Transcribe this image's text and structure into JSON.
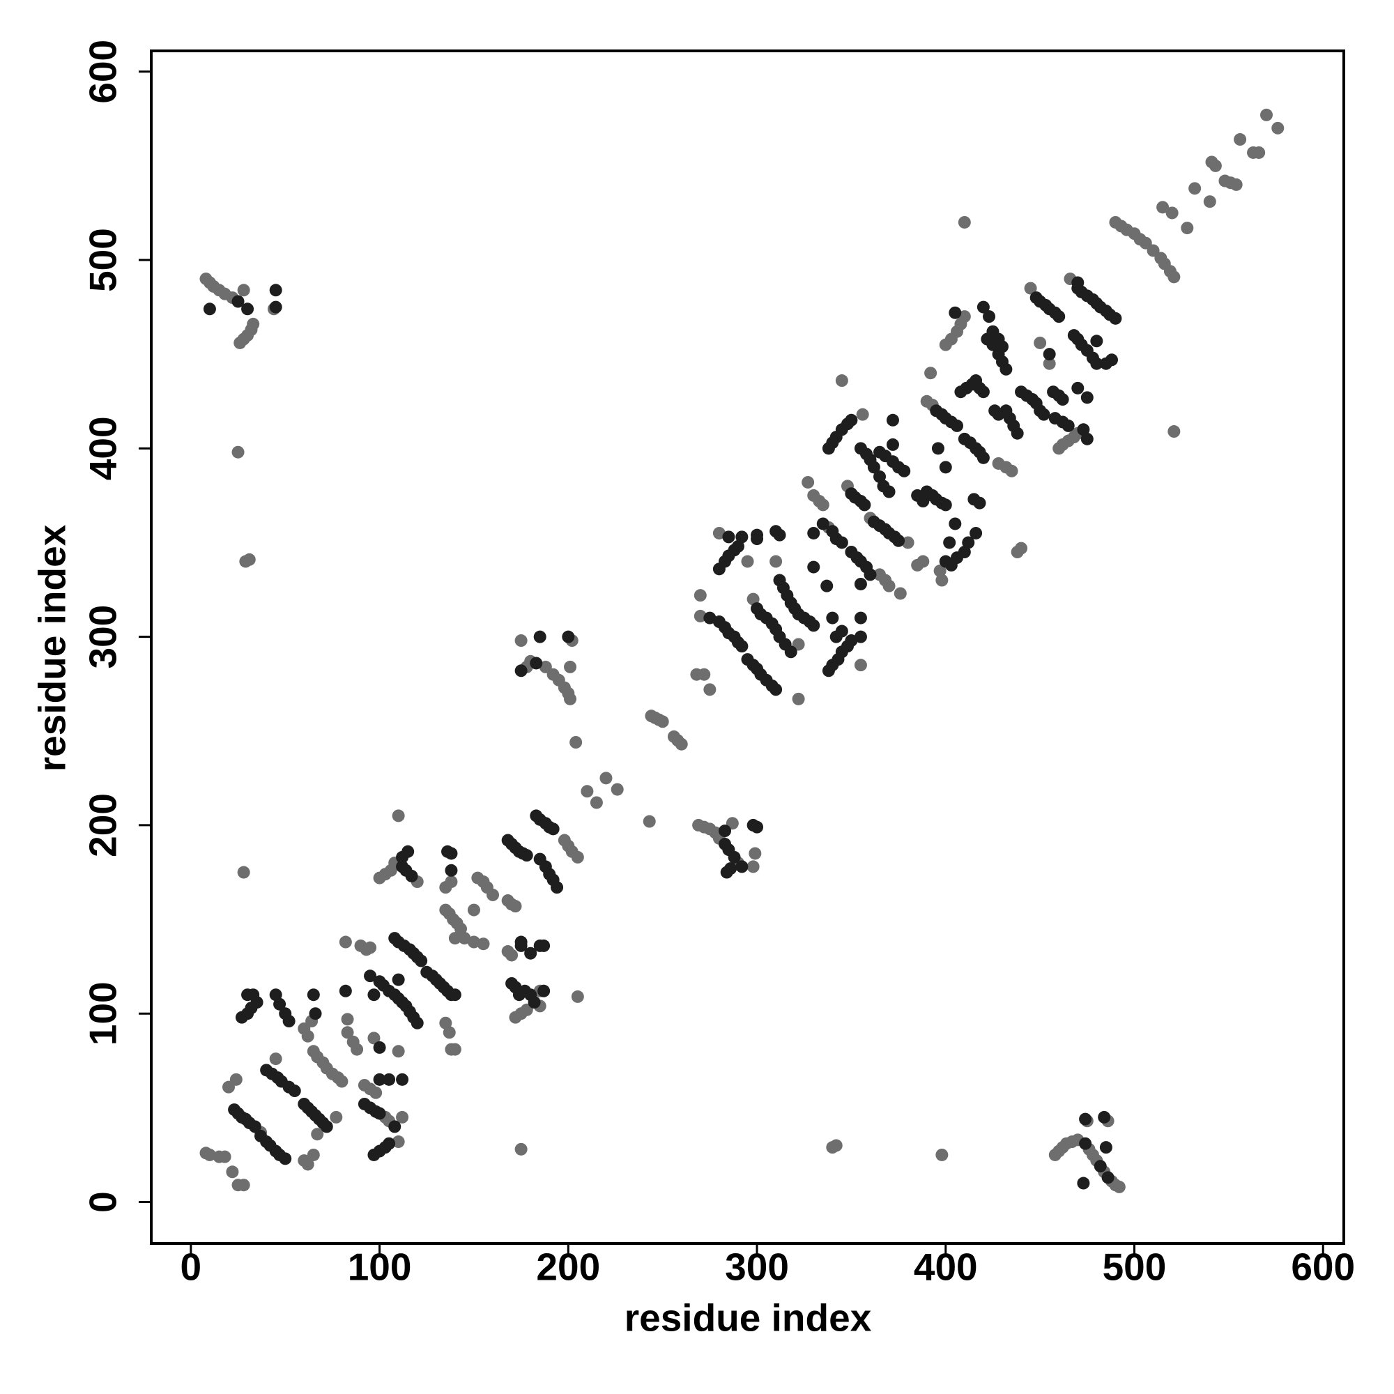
{
  "chart_data": {
    "type": "scatter",
    "x_label": "residue index",
    "y_label": "residue index",
    "xlim": [
      -21,
      611
    ],
    "ylim": [
      -22,
      611
    ],
    "xticks": [
      0,
      100,
      200,
      300,
      400,
      500,
      600
    ],
    "yticks": [
      0,
      100,
      200,
      300,
      400,
      500,
      600
    ],
    "series": [
      {
        "color": "#6e6e6e",
        "x": [
          8,
          10,
          12,
          15,
          18,
          22,
          28,
          44,
          26,
          28,
          30,
          32,
          33,
          25,
          29,
          31,
          28,
          458,
          460,
          462,
          464,
          467,
          470,
          475,
          486,
          476,
          478,
          480,
          484,
          488,
          490,
          492,
          340,
          342,
          398,
          175,
          178,
          180,
          188,
          192,
          195,
          198,
          200,
          201,
          175,
          202,
          201,
          204,
          269,
          272,
          275,
          278,
          280,
          290,
          287,
          299,
          298,
          244,
          246,
          248,
          250,
          256,
          258,
          260,
          243,
          220,
          226,
          215,
          210,
          490,
          493,
          496,
          500,
          503,
          506,
          510,
          514,
          516,
          519,
          521,
          515,
          520,
          528,
          532,
          540,
          541,
          543,
          548,
          551,
          554,
          556,
          563,
          566,
          570,
          576,
          410,
          521,
          8,
          10,
          15,
          18,
          22,
          25,
          28,
          20,
          24,
          45,
          37,
          60,
          62,
          65,
          67,
          77,
          64,
          60,
          62,
          65,
          67,
          70,
          72,
          75,
          78,
          80,
          82,
          83,
          83,
          86,
          88,
          90,
          93,
          95,
          97,
          92,
          95,
          98,
          103,
          105,
          110,
          112,
          110,
          110,
          100,
          103,
          106,
          108,
          120,
          135,
          138,
          135,
          137,
          139,
          141,
          143,
          140,
          145,
          150,
          155,
          135,
          137,
          138,
          140,
          152,
          155,
          157,
          160,
          150,
          168,
          170,
          172,
          168,
          170,
          172,
          175,
          178,
          185,
          185,
          198,
          200,
          202,
          205,
          205,
          270,
          270,
          268,
          272,
          275,
          280,
          295,
          298,
          310,
          322,
          322,
          327,
          330,
          333,
          335,
          338,
          345,
          348,
          355,
          356,
          360,
          365,
          368,
          370,
          376,
          380,
          385,
          388,
          392,
          390,
          393,
          398,
          397,
          400,
          403,
          406,
          408,
          410,
          440,
          438,
          428,
          432,
          435,
          445,
          450,
          455,
          460,
          462,
          465,
          468,
          470,
          466
        ],
        "values": [
          490,
          488,
          486,
          484,
          482,
          480,
          484,
          474,
          456,
          458,
          460,
          463,
          466,
          398,
          340,
          341,
          175,
          25,
          27,
          29,
          31,
          32,
          33,
          43,
          43,
          28,
          25,
          22,
          16,
          11,
          9,
          8,
          29,
          30,
          25,
          28,
          284,
          287,
          284,
          280,
          277,
          273,
          270,
          267,
          298,
          298,
          284,
          244,
          200,
          199,
          198,
          196,
          193,
          180,
          201,
          185,
          178,
          258,
          257,
          256,
          255,
          247,
          245,
          243,
          202,
          225,
          219,
          212,
          218,
          520,
          518,
          516,
          514,
          511,
          509,
          505,
          501,
          498,
          494,
          491,
          528,
          525,
          517,
          538,
          531,
          552,
          550,
          542,
          541,
          540,
          564,
          557,
          557,
          577,
          570,
          520,
          409,
          26,
          25,
          24,
          24,
          16,
          9,
          9,
          61,
          65,
          76,
          37,
          22,
          20,
          25,
          36,
          45,
          96,
          92,
          88,
          80,
          77,
          74,
          71,
          68,
          66,
          64,
          138,
          97,
          90,
          85,
          81,
          136,
          134,
          135,
          87,
          62,
          60,
          58,
          45,
          43,
          32,
          45,
          80,
          205,
          172,
          174,
          176,
          180,
          170,
          167,
          170,
          155,
          153,
          150,
          148,
          145,
          140,
          140,
          138,
          137,
          95,
          90,
          81,
          81,
          172,
          170,
          167,
          163,
          155,
          160,
          158,
          157,
          133,
          131,
          98,
          100,
          102,
          104,
          112,
          192,
          189,
          186,
          183,
          109,
          322,
          311,
          280,
          280,
          272,
          355,
          340,
          320,
          340,
          296,
          267,
          382,
          375,
          372,
          370,
          358,
          436,
          380,
          285,
          418,
          363,
          333,
          330,
          327,
          323,
          350,
          338,
          340,
          440,
          425,
          423,
          330,
          335,
          455,
          458,
          462,
          466,
          470,
          347,
          345,
          392,
          390,
          388,
          485,
          456,
          445,
          400,
          402,
          404,
          406,
          408,
          490
        ]
      },
      {
        "color": "#1e1e1e",
        "x": [
          10,
          45,
          45,
          25,
          30,
          474,
          484,
          474,
          482,
          486,
          485,
          473,
          175,
          183,
          185,
          200,
          283,
          285,
          288,
          292,
          284,
          286,
          283,
          298,
          300,
          23,
          25,
          27,
          29,
          31,
          34,
          37,
          40,
          42,
          45,
          47,
          50,
          27,
          30,
          32,
          35,
          30,
          33,
          40,
          43,
          46,
          48,
          52,
          55,
          45,
          47,
          50,
          52,
          60,
          62,
          64,
          66,
          68,
          70,
          72,
          65,
          66,
          82,
          95,
          97,
          100,
          102,
          105,
          108,
          110,
          100,
          100,
          105,
          92,
          95,
          98,
          100,
          108,
          97,
          100,
          103,
          105,
          112,
          108,
          110,
          113,
          116,
          118,
          120,
          122,
          110,
          112,
          114,
          116,
          118,
          120,
          112,
          115,
          112,
          114,
          117,
          125,
          128,
          130,
          132,
          134,
          136,
          138,
          140,
          136,
          138,
          138,
          168,
          170,
          172,
          174,
          176,
          178,
          175,
          175,
          180,
          185,
          187,
          170,
          172,
          174,
          177,
          180,
          182,
          187,
          183,
          185,
          188,
          190,
          192,
          185,
          188,
          190,
          192,
          194,
          275,
          280,
          283,
          285,
          288,
          290,
          292,
          280,
          283,
          285,
          288,
          290,
          285,
          292,
          300,
          300,
          300,
          302,
          305,
          308,
          310,
          312,
          315,
          318,
          295,
          298,
          300,
          302,
          305,
          308,
          310,
          312,
          314,
          316,
          318,
          320,
          310,
          312,
          322,
          325,
          328,
          330,
          330,
          335,
          340,
          342,
          345,
          330,
          337,
          340,
          342,
          345,
          338,
          340,
          343,
          345,
          348,
          350,
          355,
          355,
          355,
          338,
          340,
          342,
          345,
          348,
          350,
          350,
          352,
          355,
          357,
          350,
          353,
          355,
          358,
          360,
          355,
          358,
          360,
          362,
          365,
          367,
          370,
          362,
          365,
          368,
          370,
          373,
          375,
          365,
          368,
          372,
          375,
          378,
          372,
          372,
          390,
          393,
          395,
          398,
          400,
          385,
          388,
          395,
          398,
          400,
          403,
          406,
          396,
          400,
          405,
          402,
          400,
          403,
          406,
          410,
          412,
          405,
          408,
          411,
          414,
          416,
          418,
          420,
          410,
          413,
          416,
          418,
          420,
          415,
          418,
          416,
          420,
          423,
          425,
          428,
          430,
          422,
          425,
          428,
          430,
          432,
          432,
          434,
          436,
          438,
          426,
          428,
          440,
          443,
          446,
          448,
          450,
          452,
          448,
          450,
          453,
          455,
          458,
          460,
          455,
          457,
          460,
          462,
          458,
          462,
          465,
          473,
          475,
          468,
          470,
          472,
          475,
          478,
          480,
          470,
          472,
          475,
          478,
          480,
          482,
          485,
          487,
          490,
          470,
          475,
          470,
          485,
          488,
          480
        ],
        "values": [
          474,
          484,
          475,
          478,
          474,
          44,
          45,
          31,
          19,
          13,
          29,
          10,
          282,
          286,
          300,
          300,
          190,
          187,
          183,
          178,
          175,
          177,
          197,
          200,
          199,
          49,
          47,
          45,
          44,
          42,
          40,
          35,
          32,
          30,
          27,
          25,
          23,
          98,
          100,
          103,
          106,
          110,
          110,
          70,
          68,
          66,
          64,
          61,
          59,
          110,
          105,
          100,
          96,
          52,
          50,
          48,
          46,
          44,
          42,
          40,
          110,
          100,
          112,
          120,
          110,
          117,
          115,
          112,
          110,
          108,
          82,
          65,
          65,
          52,
          50,
          48,
          47,
          40,
          25,
          27,
          29,
          31,
          65,
          140,
          138,
          136,
          134,
          132,
          130,
          128,
          118,
          106,
          104,
          101,
          98,
          95,
          183,
          186,
          178,
          176,
          173,
          122,
          120,
          118,
          116,
          114,
          112,
          110,
          110,
          186,
          185,
          176,
          192,
          190,
          188,
          186,
          185,
          184,
          136,
          138,
          132,
          136,
          136,
          116,
          114,
          110,
          112,
          110,
          106,
          112,
          205,
          203,
          201,
          199,
          198,
          182,
          178,
          174,
          171,
          167,
          310,
          308,
          305,
          302,
          300,
          297,
          295,
          336,
          340,
          343,
          346,
          348,
          353,
          353,
          352,
          354,
          315,
          312,
          310,
          307,
          304,
          300,
          296,
          292,
          288,
          285,
          283,
          280,
          277,
          274,
          272,
          330,
          326,
          322,
          318,
          315,
          356,
          354,
          312,
          310,
          308,
          306,
          355,
          360,
          356,
          352,
          350,
          337,
          327,
          310,
          300,
          303,
          282,
          285,
          288,
          292,
          295,
          298,
          300,
          310,
          328,
          400,
          403,
          406,
          410,
          413,
          415,
          376,
          374,
          372,
          370,
          345,
          342,
          340,
          337,
          333,
          400,
          397,
          394,
          390,
          385,
          380,
          377,
          361,
          359,
          357,
          355,
          353,
          351,
          398,
          396,
          393,
          390,
          388,
          402,
          415,
          377,
          375,
          373,
          371,
          370,
          375,
          372,
          420,
          418,
          416,
          414,
          412,
          400,
          390,
          360,
          350,
          340,
          338,
          342,
          345,
          350,
          472,
          430,
          432,
          434,
          436,
          432,
          430,
          405,
          403,
          400,
          398,
          395,
          373,
          371,
          355,
          475,
          470,
          462,
          458,
          454,
          458,
          455,
          450,
          446,
          442,
          420,
          416,
          412,
          408,
          420,
          418,
          430,
          428,
          426,
          424,
          420,
          418,
          480,
          478,
          476,
          474,
          472,
          470,
          450,
          430,
          428,
          426,
          416,
          414,
          412,
          410,
          405,
          460,
          458,
          455,
          452,
          448,
          445,
          485,
          483,
          481,
          479,
          477,
          475,
          473,
          471,
          469,
          488,
          427,
          432,
          445,
          447,
          457
        ]
      }
    ]
  }
}
